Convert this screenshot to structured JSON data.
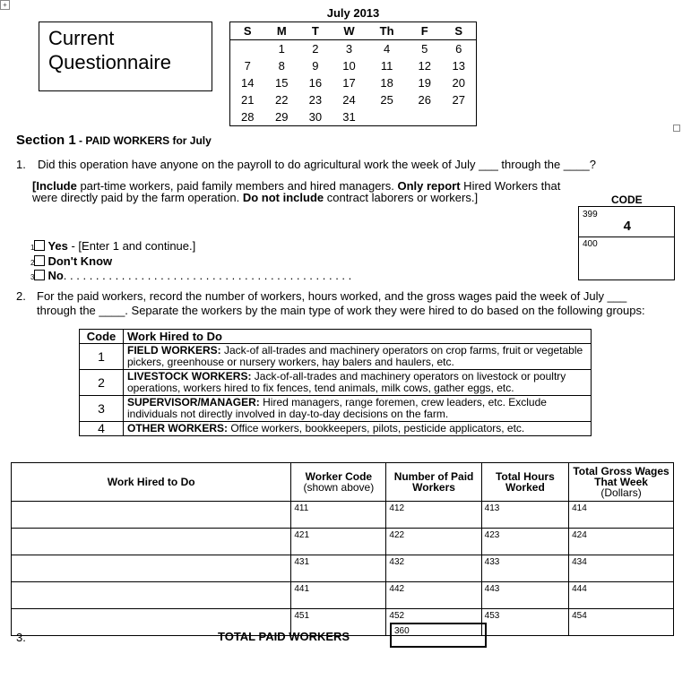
{
  "title_box": {
    "line1": "Current",
    "line2": "Questionnaire"
  },
  "calendar": {
    "title": "July 2013",
    "days": [
      "S",
      "M",
      "T",
      "W",
      "Th",
      "F",
      "S"
    ],
    "weeks": [
      [
        "",
        "1",
        "2",
        "3",
        "4",
        "5",
        "6"
      ],
      [
        "7",
        "8",
        "9",
        "10",
        "11",
        "12",
        "13"
      ],
      [
        "14",
        "15",
        "16",
        "17",
        "18",
        "19",
        "20"
      ],
      [
        "21",
        "22",
        "23",
        "24",
        "25",
        "26",
        "27"
      ],
      [
        "28",
        "29",
        "30",
        "31",
        "",
        "",
        ""
      ]
    ]
  },
  "section": {
    "title": "Section 1",
    "subtitle": " - PAID WORKERS for July"
  },
  "q1": {
    "num": "1.",
    "text": "Did this operation have anyone on the payroll to do agricultural work the week of July ___ through the ____?",
    "inst_b1": "[Include",
    "inst_1": " part-time workers,  paid family members and hired managers.  ",
    "inst_b2": "Only report",
    "inst_2": " Hired Workers that were  directly paid by the farm operation.  ",
    "inst_b3": "Do not include",
    "inst_3": " contract laborers or workers.]",
    "code_label": "CODE",
    "code1": "399",
    "code1_value": "4",
    "code2": "400",
    "options": [
      {
        "n": "1",
        "label": "Yes",
        "rest": " - [Enter 1 and continue.]"
      },
      {
        "n": "2",
        "label": "Don't Know",
        "rest": ""
      },
      {
        "n": "3",
        "label": "No",
        "rest": ". . . . . . . . . . . . . . . . . . . . . . . . . . . . . . . . . . . . . . . . . . . . ."
      }
    ]
  },
  "q2": {
    "num": "2.",
    "line1": "For the paid workers, record the number of workers, hours worked, and the gross wages paid the week of July ___",
    "line2": "through the ____.  Separate the workers by the main type of work they were hired to do based on the following groups:"
  },
  "code_table": {
    "headers": [
      "Code",
      "Work Hired to Do"
    ],
    "rows": [
      {
        "code": "1",
        "bold": "FIELD WORKERS:",
        "text": " Jack-of all-trades and machinery operators on crop farms, fruit or vegetable pickers, greenhouse or nursery workers, hay balers and haulers, etc."
      },
      {
        "code": "2",
        "bold": "LIVESTOCK WORKERS:",
        "text": " Jack-of-all-trades and machinery operators on livestock or poultry operations, workers hired to fix fences, tend animals, milk cows, gather eggs, etc."
      },
      {
        "code": "3",
        "bold": "SUPERVISOR/MANAGER:",
        "text": " Hired managers, range foremen, crew leaders, etc.  Exclude individuals not directly involved in day-to-day decisions on the farm."
      },
      {
        "code": "4",
        "bold": "OTHER WORKERS:",
        "text": " Office workers, bookkeepers, pilots, pesticide applicators, etc."
      }
    ]
  },
  "work_table": {
    "headers": [
      {
        "b": "Work Hired to Do",
        "n": ""
      },
      {
        "b": "Worker Code",
        "n": "(shown above)"
      },
      {
        "b": "Number of Paid Workers",
        "n": ""
      },
      {
        "b": "Total Hours Worked",
        "n": ""
      },
      {
        "b": "Total Gross Wages That Week",
        "n": "(Dollars)"
      }
    ],
    "rows": [
      [
        "411",
        "412",
        "413",
        "414"
      ],
      [
        "421",
        "422",
        "423",
        "424"
      ],
      [
        "431",
        "432",
        "433",
        "434"
      ],
      [
        "441",
        "442",
        "443",
        "444"
      ],
      [
        "451",
        "452",
        "453",
        "454"
      ]
    ]
  },
  "q3": {
    "num": "3.",
    "label": "TOTAL PAID WORKERS",
    "code": "360"
  }
}
